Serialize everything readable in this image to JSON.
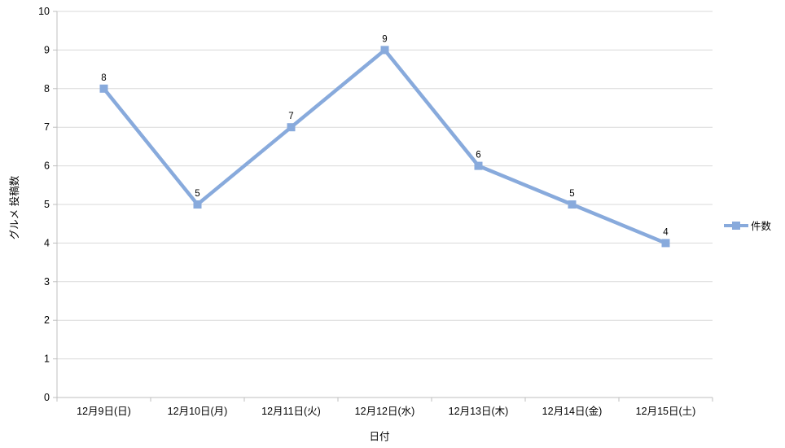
{
  "chart_data": {
    "type": "line",
    "categories": [
      "12月9日(日)",
      "12月10日(月)",
      "12月11日(火)",
      "12月12日(水)",
      "12月13日(木)",
      "12月14日(金)",
      "12月15日(土)"
    ],
    "series": [
      {
        "name": "件数",
        "values": [
          8,
          5,
          7,
          9,
          6,
          5,
          4
        ],
        "color": "#88AADC",
        "marker": "square"
      }
    ],
    "title": "",
    "xlabel": "日付",
    "ylabel": "グルメ 投稿数",
    "ylim": [
      0,
      10
    ],
    "ytick_step": 1,
    "yticks": [
      0,
      1,
      2,
      3,
      4,
      5,
      6,
      7,
      8,
      9,
      10
    ],
    "grid": true,
    "data_labels_shown": true,
    "legend_position": "right"
  },
  "colors": {
    "line": "#88AADC",
    "marker": "#88AADC",
    "grid": "#D9D9D9",
    "axis": "#BFBFBF",
    "text": "#000000",
    "background": "#FFFFFF"
  }
}
